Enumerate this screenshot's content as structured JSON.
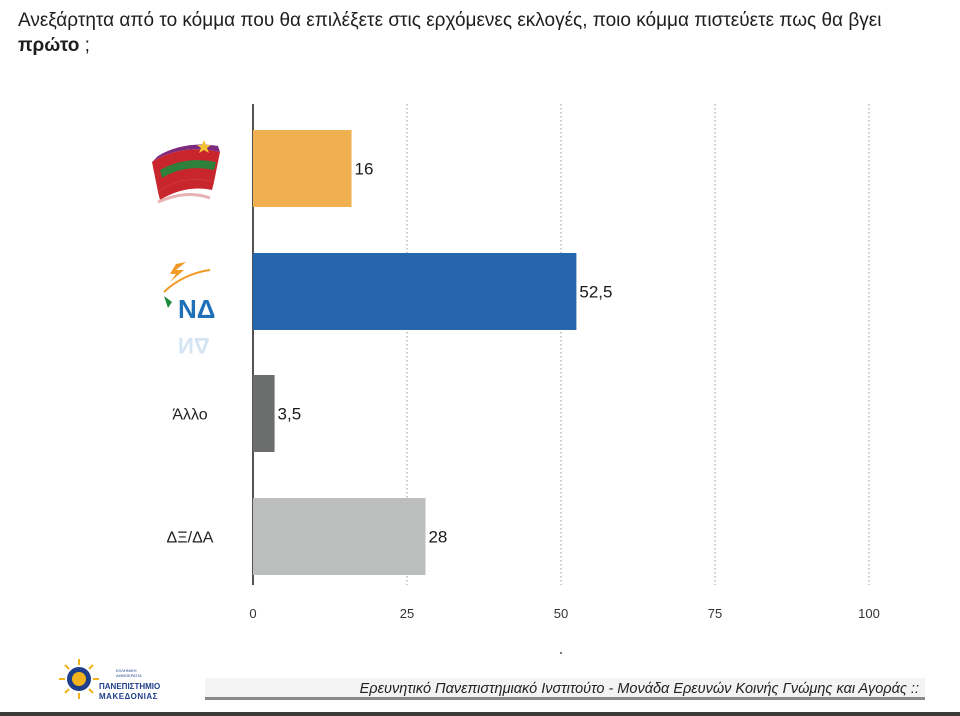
{
  "question": {
    "text_before": "Ανεξάρτητα από το κόμμα που θα επιλέξετε στις ερχόμενες εκλογές, ποιο κόμμα πιστεύετε πως θα βγει ",
    "bold": "πρώτο",
    "text_after": " ;"
  },
  "chart_data": {
    "type": "bar",
    "orientation": "horizontal",
    "categories": [
      "ΣΥΡΙΖΑ",
      "ΝΔ",
      "Άλλο",
      "ΔΞ/ΔΑ"
    ],
    "values": [
      16,
      52.5,
      3.5,
      28
    ],
    "value_labels": [
      "16",
      "52,5",
      "3,5",
      "28"
    ],
    "category_labels_shown": [
      "",
      "",
      "Άλλο",
      "ΔΞ/ΔΑ"
    ],
    "bar_colors": [
      "#F0B050",
      "#2566AE",
      "#6B6E6D",
      "#BCBEBE"
    ],
    "xlim": [
      0,
      100
    ],
    "xticks": [
      0,
      25,
      50,
      75,
      100
    ],
    "xtick_labels": [
      "0",
      "25",
      "50",
      "75",
      "100"
    ],
    "grid": "vertical dotted"
  },
  "logos": {
    "syriza": "syriza-logo",
    "nd": "nd-logo",
    "nd_text": "ΝΔ",
    "university_line1": "ΠΑΝΕΠΙΣΤΗΜΙΟ",
    "university_line2": "ΜΑΚΕΔΟΝΙΑΣ",
    "university_sub": "ΕΛΛΗΝΙΚΗ ΔΗΜΟΚΡΑΤΙΑ"
  },
  "footer": {
    "text": "Ερευνητικό Πανεπιστημιακό Ινστιτούτο - Μονάδα Ερευνών Κοινής Γνώμης και Αγοράς ::"
  }
}
